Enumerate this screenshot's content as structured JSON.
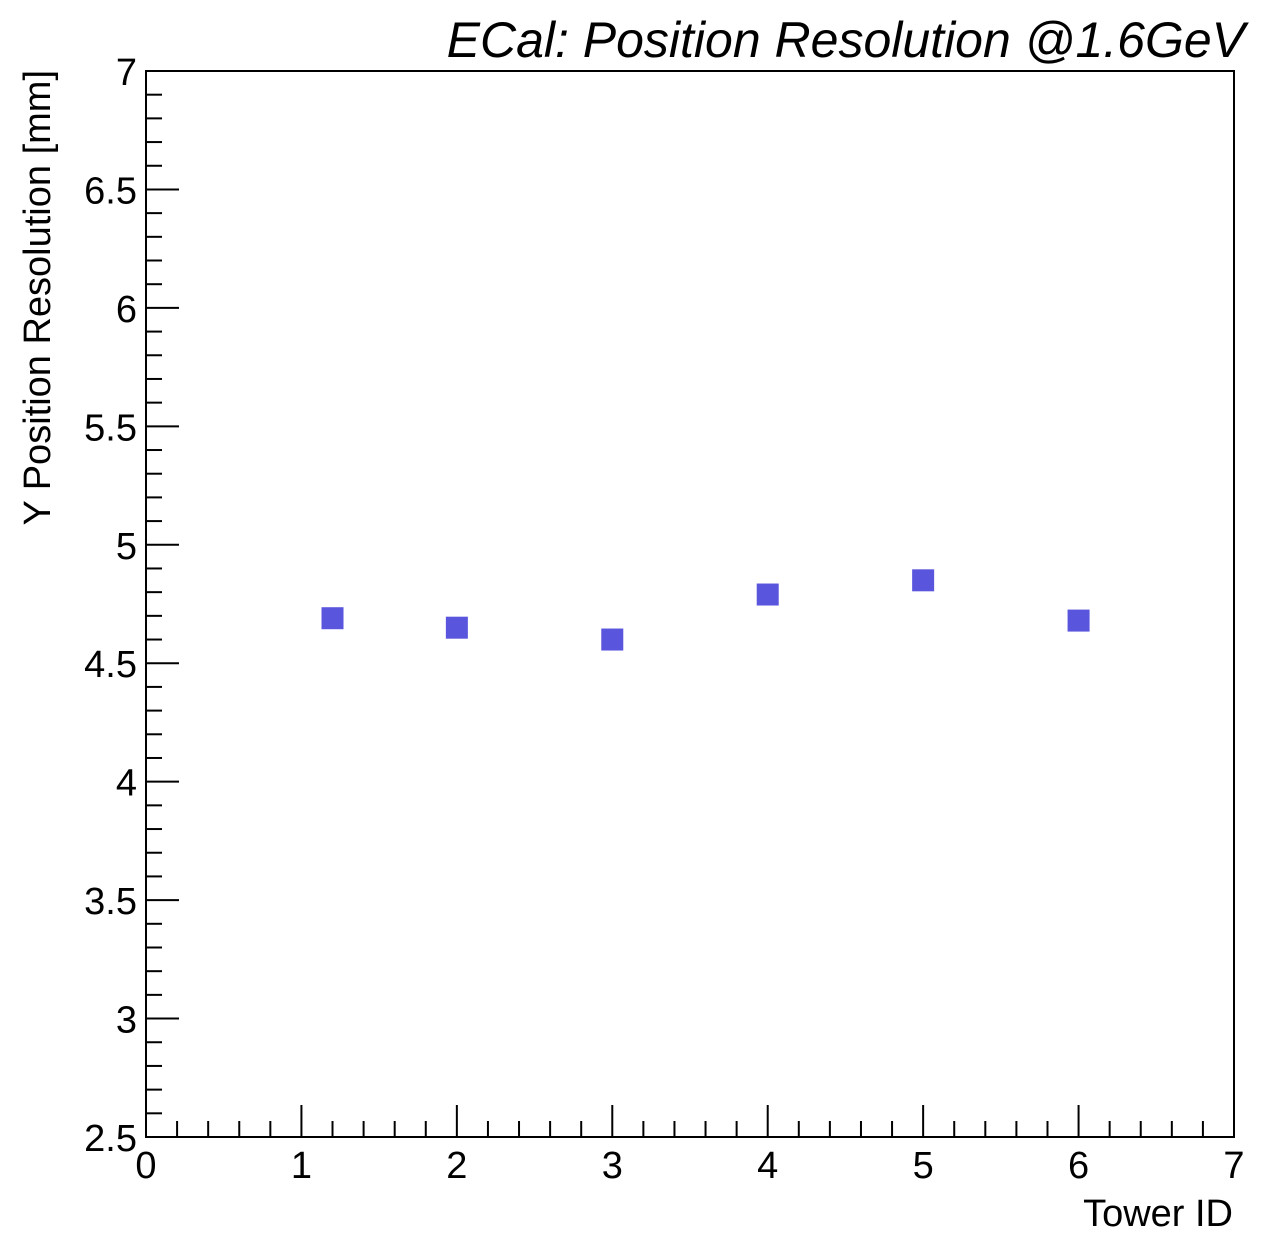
{
  "chart_data": {
    "type": "scatter",
    "title": "ECal: Position Resolution @1.6GeV",
    "xlabel": "Tower ID",
    "ylabel": "Y Position Resolution [mm]",
    "xlim": [
      0,
      7
    ],
    "ylim": [
      2.5,
      7
    ],
    "x_ticks": [
      "0",
      "1",
      "2",
      "3",
      "4",
      "5",
      "6",
      "7"
    ],
    "y_ticks": [
      "2.5",
      "3",
      "3.5",
      "4",
      "4.5",
      "5",
      "5.5",
      "6",
      "6.5",
      "7"
    ],
    "grid": false,
    "legend": "none",
    "marker": "square",
    "marker_color": "#5a55dd",
    "series": [
      {
        "points": [
          {
            "x": 1.2,
            "y": 4.69
          },
          {
            "x": 2.0,
            "y": 4.65
          },
          {
            "x": 3.0,
            "y": 4.6
          },
          {
            "x": 4.0,
            "y": 4.79
          },
          {
            "x": 5.0,
            "y": 4.85
          },
          {
            "x": 6.0,
            "y": 4.68
          }
        ]
      }
    ]
  }
}
